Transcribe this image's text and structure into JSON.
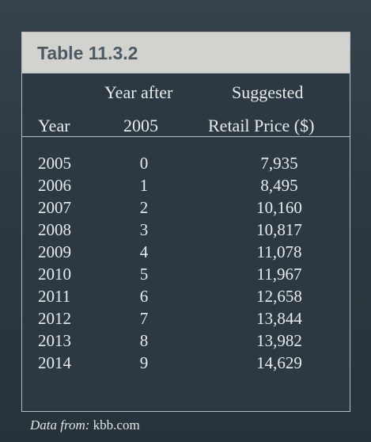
{
  "table": {
    "title": "Table 11.3.2",
    "headers": {
      "year": "Year",
      "year_after_line1": "Year after",
      "year_after_line2": "2005",
      "price_line1": "Suggested",
      "price_line2": "Retail Price ($)"
    },
    "rows": [
      {
        "year": "2005",
        "after": "0",
        "price": "7,935"
      },
      {
        "year": "2006",
        "after": "1",
        "price": "8,495"
      },
      {
        "year": "2007",
        "after": "2",
        "price": "10,160"
      },
      {
        "year": "2008",
        "after": "3",
        "price": "10,817"
      },
      {
        "year": "2009",
        "after": "4",
        "price": "11,078"
      },
      {
        "year": "2010",
        "after": "5",
        "price": "11,967"
      },
      {
        "year": "2011",
        "after": "6",
        "price": "12,658"
      },
      {
        "year": "2012",
        "after": "7",
        "price": "13,844"
      },
      {
        "year": "2013",
        "after": "8",
        "price": "13,982"
      },
      {
        "year": "2014",
        "after": "9",
        "price": "14,629"
      }
    ]
  },
  "source": {
    "label": "Data from:",
    "value": "kbb.com"
  },
  "colors": {
    "page_background": "#2f3b44",
    "title_bar": "#d2d2cf",
    "title_text": "#4e5a63",
    "table_text": "#e8ebec"
  }
}
